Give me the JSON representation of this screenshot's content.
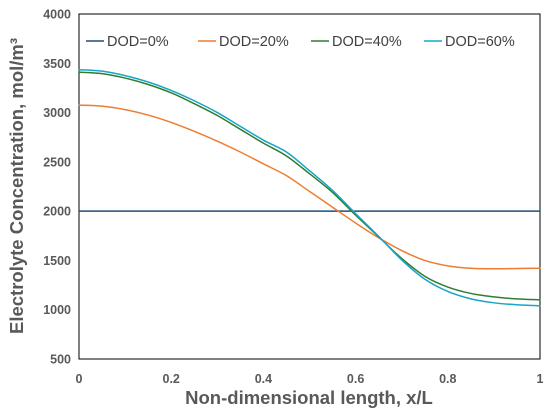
{
  "chart_data": {
    "type": "line",
    "title": "",
    "xlabel": "Non-dimensional length, x/L",
    "ylabel": "Electrolyte Concentration, mol/m³",
    "xlim": [
      0,
      1
    ],
    "ylim": [
      500,
      4000
    ],
    "x_ticks": [
      0,
      0.2,
      0.4,
      0.6,
      0.8,
      1
    ],
    "x_tick_labels": [
      "0",
      "0.2",
      "0.4",
      "0.6",
      "0.8",
      "1"
    ],
    "y_ticks": [
      500,
      1000,
      1500,
      2000,
      2500,
      3000,
      3500,
      4000
    ],
    "y_tick_labels": [
      "500",
      "1000",
      "1500",
      "2000",
      "2500",
      "3000",
      "3500",
      "4000"
    ],
    "grid": false,
    "legend_position": "top",
    "x": [
      0,
      0.05,
      0.1,
      0.15,
      0.2,
      0.25,
      0.3,
      0.35,
      0.4,
      0.45,
      0.5,
      0.55,
      0.6,
      0.65,
      0.7,
      0.75,
      0.8,
      0.85,
      0.9,
      0.95,
      1.0
    ],
    "series": [
      {
        "name": "DOD=0%",
        "color": "#1F4E79",
        "values": [
          2000,
          2000,
          2000,
          2000,
          2000,
          2000,
          2000,
          2000,
          2000,
          2000,
          2000,
          2000,
          2000,
          2000,
          2000,
          2000,
          2000,
          2000,
          2000,
          2000,
          2000
        ]
      },
      {
        "name": "DOD=20%",
        "color": "#ED7D31",
        "values": [
          3075,
          3065,
          3030,
          2975,
          2900,
          2810,
          2710,
          2600,
          2480,
          2360,
          2200,
          2040,
          1880,
          1730,
          1600,
          1500,
          1445,
          1420,
          1415,
          1418,
          1420
        ]
      },
      {
        "name": "DOD=40%",
        "color": "#2E7D32",
        "values": [
          3410,
          3395,
          3350,
          3285,
          3200,
          3090,
          2970,
          2830,
          2690,
          2560,
          2380,
          2190,
          1960,
          1740,
          1520,
          1340,
          1230,
          1165,
          1130,
          1110,
          1100
        ]
      },
      {
        "name": "DOD=60%",
        "color": "#17A5C8",
        "values": [
          3435,
          3420,
          3375,
          3310,
          3225,
          3120,
          3000,
          2860,
          2720,
          2600,
          2410,
          2210,
          1975,
          1745,
          1505,
          1310,
          1185,
          1110,
          1070,
          1050,
          1040
        ]
      }
    ]
  }
}
